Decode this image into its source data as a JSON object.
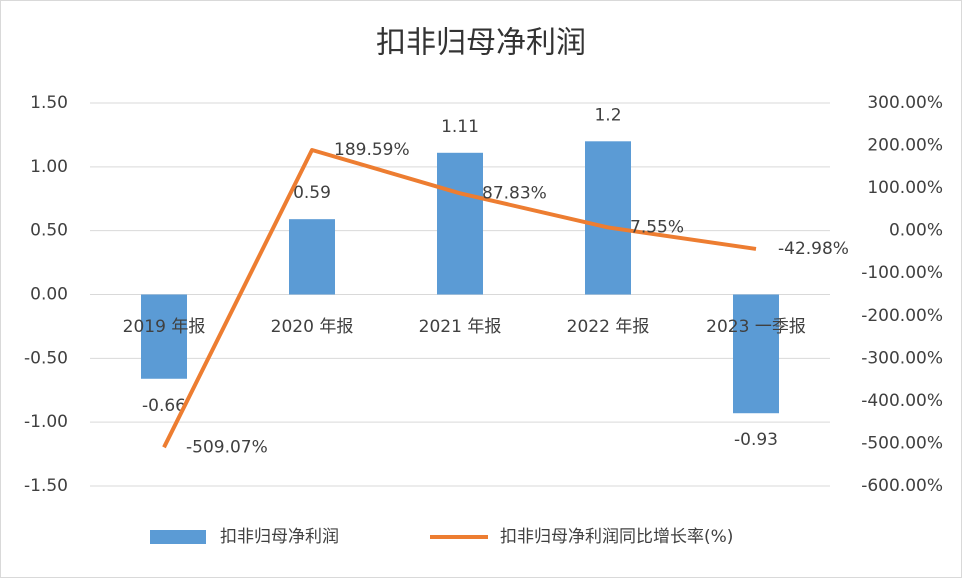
{
  "chart_data": {
    "type": "combo",
    "title": "扣非归母净利润",
    "categories": [
      "2019 年报",
      "2020 年报",
      "2021 年报",
      "2022 年报",
      "2023 一季报"
    ],
    "series": [
      {
        "name": "扣非归母净利润",
        "type": "bar",
        "color": "#5b9bd5",
        "values": [
          -0.66,
          0.59,
          1.11,
          1.2,
          -0.93
        ]
      },
      {
        "name": "扣非归母净利润同比增长率(%)",
        "type": "line",
        "axis": "y2",
        "color": "#ed7d31",
        "values": [
          -509.07,
          189.59,
          87.83,
          7.55,
          -42.98
        ],
        "value_labels": [
          "-509.07%",
          "189.59%",
          "87.83%",
          "7.55%",
          "-42.98%"
        ]
      }
    ],
    "ylim": [
      -1.5,
      1.5
    ],
    "yticks": [
      {
        "value": -1.5,
        "label": "-1.50"
      },
      {
        "value": -1,
        "label": "-1.00"
      },
      {
        "value": -0.5,
        "label": "-0.50"
      },
      {
        "value": 0,
        "label": "0.00"
      },
      {
        "value": 0.5,
        "label": "0.50"
      },
      {
        "value": 1,
        "label": "1.00"
      },
      {
        "value": 1.5,
        "label": "1.50"
      }
    ],
    "y2lim": [
      -600,
      300
    ],
    "y2ticks": [
      {
        "value": -600,
        "label": "-600.00%"
      },
      {
        "value": -500,
        "label": "-500.00%"
      },
      {
        "value": -400,
        "label": "-400.00%"
      },
      {
        "value": -300,
        "label": "-300.00%"
      },
      {
        "value": -200,
        "label": "-200.00%"
      },
      {
        "value": -100,
        "label": "-100.00%"
      },
      {
        "value": 0,
        "label": "0.00%"
      },
      {
        "value": 100,
        "label": "100.00%"
      },
      {
        "value": 200,
        "label": "200.00%"
      },
      {
        "value": 300,
        "label": "300.00%"
      }
    ],
    "grid": true,
    "legend": "bottom"
  }
}
